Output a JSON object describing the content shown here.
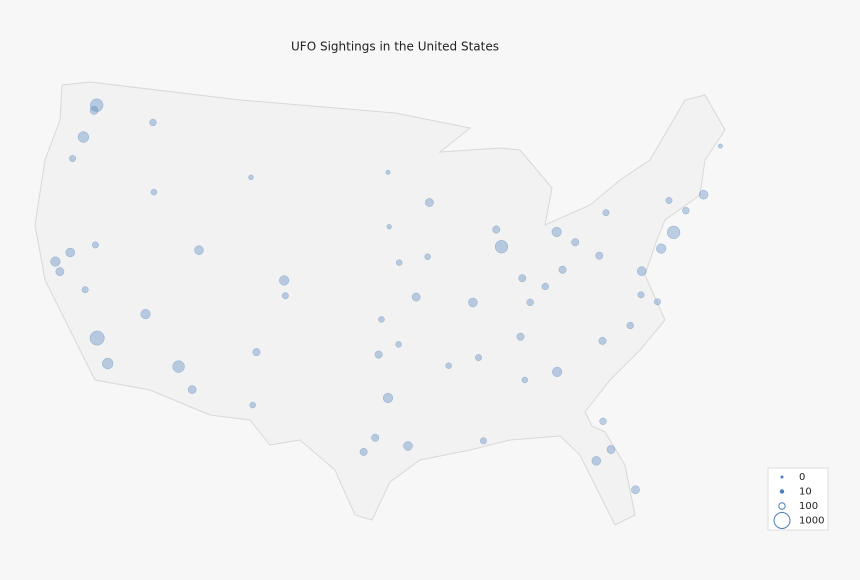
{
  "chart_data": {
    "type": "bubble-map",
    "title": "UFO Sightings in the United States",
    "legend_position": "lower right",
    "color": "#4a7fba",
    "legend_sizes": [
      0,
      10,
      100,
      1000
    ],
    "points": {
      "lon": [
        -122.3,
        -122.4,
        -117.4,
        -122.7,
        -123.1,
        -116.2,
        -122.4,
        -121.9,
        -121.5,
        -119.8,
        -118.2,
        -117.1,
        -115.1,
        -112.1,
        -110.9,
        -106.6,
        -104.99,
        -104.8,
        -111.9,
        -96.8,
        -95.4,
        -98.5,
        -97.7,
        -97.5,
        -94.6,
        -90.2,
        -93.3,
        -87.6,
        -83.05,
        -87.9,
        -86.2,
        -83.0,
        -81.7,
        -80.0,
        -75.2,
        -74.0,
        -71.06,
        -77.0,
        -84.4,
        -86.8,
        -80.8,
        -82.5,
        -81.4,
        -80.2,
        -90.1,
        -90.05,
        -95.9,
        -108.5,
        -73.8,
        -78.6,
        -81.65,
        -85.8,
        -84.5,
        -78.9,
        -86.8,
        -92.3,
        -97.3,
        -106.5,
        -119.8,
        -96.8,
        -96.7,
        -93.6,
        -96.0,
        -68.8,
        -72.7,
        -77.4,
        -76.3
      ],
      "lat": [
        47.6,
        47.25,
        47.7,
        45.5,
        44.05,
        43.6,
        37.8,
        37.3,
        38.6,
        36.7,
        34.05,
        32.7,
        36.2,
        33.45,
        32.2,
        35.1,
        39.74,
        38.8,
        40.76,
        32.8,
        29.8,
        29.4,
        30.3,
        35.5,
        39.1,
        38.6,
        44.98,
        41.9,
        42.33,
        43.0,
        39.8,
        39.96,
        41.5,
        40.4,
        39.95,
        40.7,
        42.36,
        38.9,
        33.75,
        36.2,
        35.2,
        27.95,
        28.5,
        25.8,
        29.95,
        35.15,
        41.26,
        45.8,
        42.65,
        35.8,
        30.3,
        38.25,
        39.1,
        42.9,
        33.5,
        34.75,
        37.7,
        31.8,
        39.5,
        46.9,
        43.5,
        41.6,
        36.15,
        44.8,
        41.76,
        37.5,
        36.85
      ],
      "count": [
        600,
        200,
        120,
        400,
        100,
        80,
        300,
        200,
        250,
        100,
        800,
        400,
        300,
        500,
        200,
        150,
        300,
        100,
        250,
        300,
        250,
        150,
        150,
        150,
        200,
        250,
        200,
        600,
        300,
        150,
        150,
        150,
        150,
        150,
        300,
        600,
        250,
        250,
        300,
        150,
        150,
        250,
        200,
        200,
        100,
        100,
        80,
        40,
        100,
        120,
        120,
        120,
        120,
        100,
        80,
        80,
        80,
        80,
        100,
        30,
        40,
        80,
        80,
        30,
        120,
        100,
        100
      ]
    }
  }
}
